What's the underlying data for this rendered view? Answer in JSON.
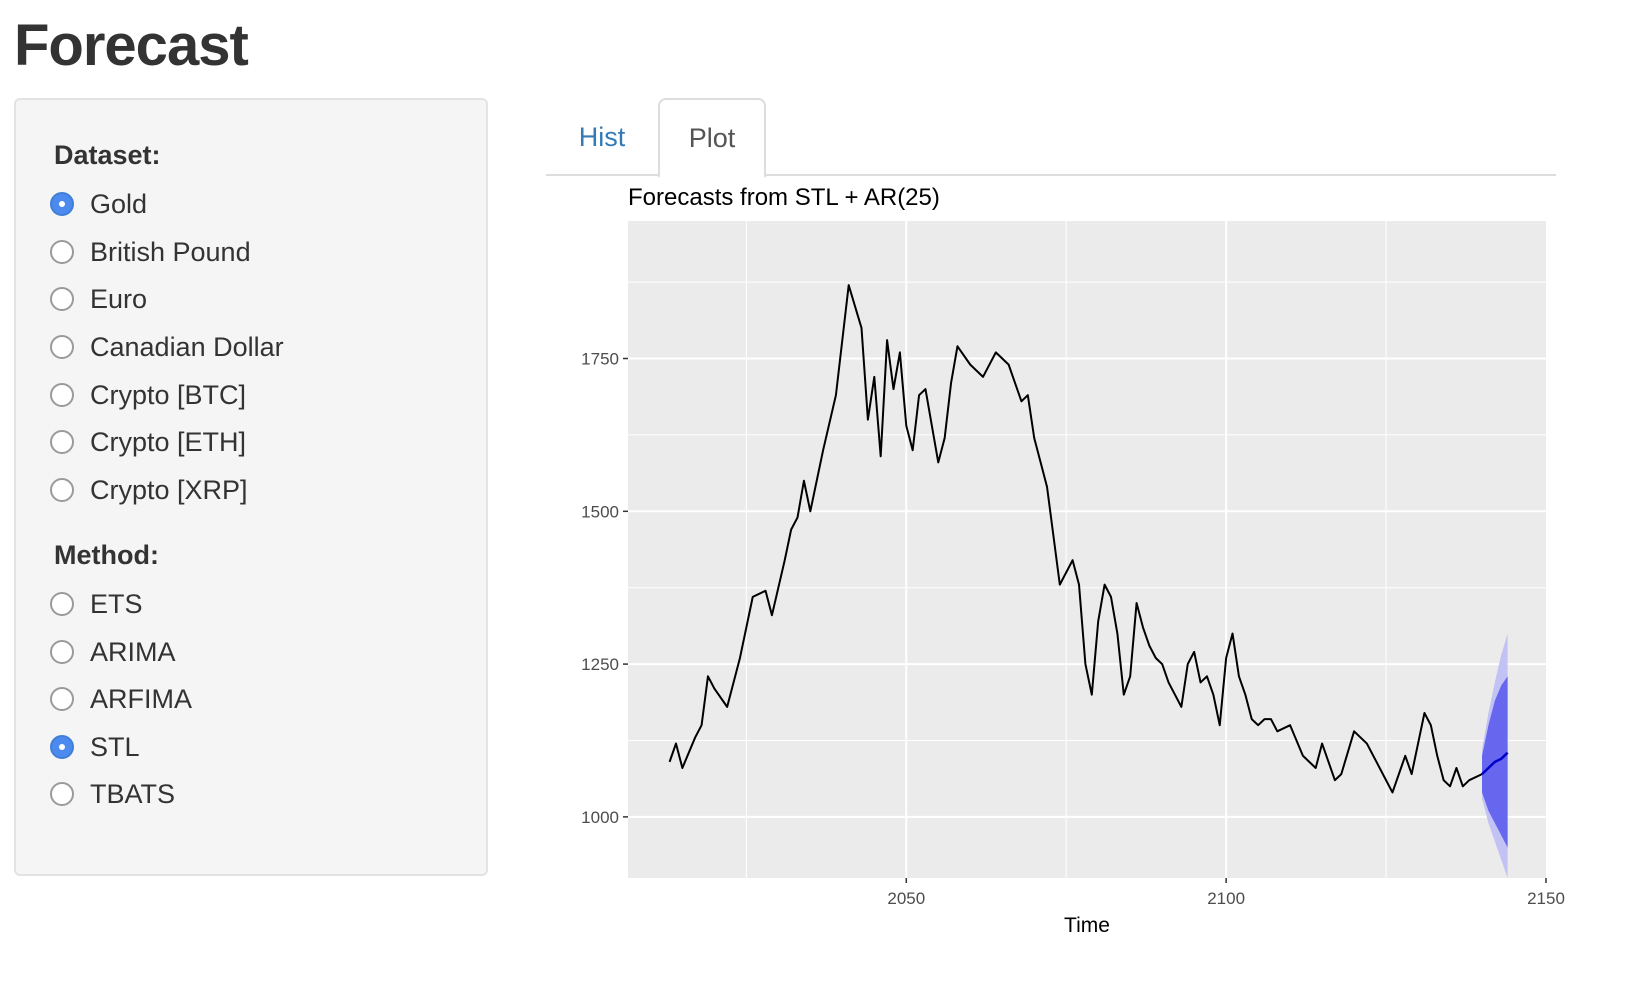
{
  "app": {
    "title": "Forecast"
  },
  "sidebar": {
    "dataset_label": "Dataset:",
    "datasets": [
      {
        "label": "Gold",
        "checked": true
      },
      {
        "label": "British Pound",
        "checked": false
      },
      {
        "label": "Euro",
        "checked": false
      },
      {
        "label": "Canadian Dollar",
        "checked": false
      },
      {
        "label": "Crypto [BTC]",
        "checked": false
      },
      {
        "label": "Crypto [ETH]",
        "checked": false
      },
      {
        "label": "Crypto [XRP]",
        "checked": false
      }
    ],
    "method_label": "Method:",
    "methods": [
      {
        "label": "ETS",
        "checked": false
      },
      {
        "label": "ARIMA",
        "checked": false
      },
      {
        "label": "ARFIMA",
        "checked": false
      },
      {
        "label": "STL",
        "checked": true
      },
      {
        "label": "TBATS",
        "checked": false
      }
    ]
  },
  "tabs": [
    {
      "label": "Hist",
      "active": false
    },
    {
      "label": "Plot",
      "active": true
    }
  ],
  "colors": {
    "accent": "#4c8af0",
    "tab_link": "#337ab7",
    "panel_bg": "#ebebeb",
    "grid": "#ffffff",
    "series": "#000000",
    "forecast_line": "#0000cc",
    "band_80": "#6666ee",
    "band_95": "#c2c2f5"
  },
  "chart_data": {
    "type": "line",
    "title": "Forecasts from STL +  AR(25)",
    "xlabel": "Time",
    "ylabel": "",
    "xlim": [
      2006.5,
      2150
    ],
    "ylim": [
      900,
      1975
    ],
    "x_ticks": [
      2050,
      2100,
      2150
    ],
    "x_tick_labels": [
      "2050",
      "2100",
      "2150"
    ],
    "y_ticks": [
      1000,
      1250,
      1500,
      1750
    ],
    "y_tick_labels": [
      "1000",
      "1250",
      "1500",
      "1750"
    ],
    "grid": true,
    "legend": "none",
    "series": [
      {
        "kind": "history",
        "x": [
          2013,
          2014,
          2015,
          2017,
          2018,
          2019,
          2020,
          2022,
          2024,
          2026,
          2028,
          2029,
          2031,
          2032,
          2033,
          2034,
          2035,
          2037,
          2039,
          2041,
          2043,
          2044,
          2045,
          2046,
          2047,
          2048,
          2049,
          2050,
          2051,
          2052,
          2053,
          2054,
          2055,
          2056,
          2057,
          2058,
          2060,
          2062,
          2064,
          2066,
          2068,
          2069,
          2070,
          2071,
          2072,
          2074,
          2076,
          2077,
          2078,
          2079,
          2080,
          2081,
          2082,
          2083,
          2084,
          2085,
          2086,
          2087,
          2088,
          2089,
          2090,
          2091,
          2092,
          2093,
          2094,
          2095,
          2096,
          2097,
          2098,
          2099,
          2100,
          2101,
          2102,
          2103,
          2104,
          2105,
          2106,
          2107,
          2108,
          2110,
          2112,
          2114,
          2115,
          2117,
          2118,
          2120,
          2122,
          2124,
          2126,
          2128,
          2129,
          2130,
          2131,
          2132,
          2133,
          2134,
          2135,
          2136,
          2137,
          2138,
          2140
        ],
        "y": [
          1090,
          1120,
          1080,
          1130,
          1150,
          1230,
          1210,
          1180,
          1260,
          1360,
          1370,
          1330,
          1420,
          1470,
          1490,
          1550,
          1500,
          1600,
          1690,
          1870,
          1800,
          1650,
          1720,
          1590,
          1780,
          1700,
          1760,
          1640,
          1600,
          1690,
          1700,
          1640,
          1580,
          1620,
          1710,
          1770,
          1740,
          1720,
          1760,
          1740,
          1680,
          1690,
          1620,
          1580,
          1540,
          1380,
          1420,
          1380,
          1250,
          1200,
          1320,
          1380,
          1360,
          1300,
          1200,
          1230,
          1350,
          1310,
          1280,
          1260,
          1250,
          1220,
          1200,
          1180,
          1250,
          1270,
          1220,
          1230,
          1200,
          1150,
          1260,
          1300,
          1230,
          1200,
          1160,
          1150,
          1160,
          1160,
          1140,
          1150,
          1100,
          1080,
          1120,
          1060,
          1070,
          1140,
          1120,
          1080,
          1040,
          1100,
          1070,
          1120,
          1170,
          1150,
          1100,
          1060,
          1050,
          1080,
          1050,
          1060,
          1070
        ]
      },
      {
        "kind": "forecast",
        "name": "",
        "x": [
          2140,
          2141,
          2142,
          2143,
          2144
        ],
        "y": [
          1070,
          1080,
          1090,
          1095,
          1105
        ],
        "lo80": [
          1040,
          1010,
          990,
          970,
          950
        ],
        "hi80": [
          1100,
          1150,
          1190,
          1215,
          1230
        ],
        "lo95": [
          1030,
          990,
          960,
          930,
          900
        ],
        "hi95": [
          1110,
          1170,
          1220,
          1265,
          1300
        ]
      }
    ]
  }
}
